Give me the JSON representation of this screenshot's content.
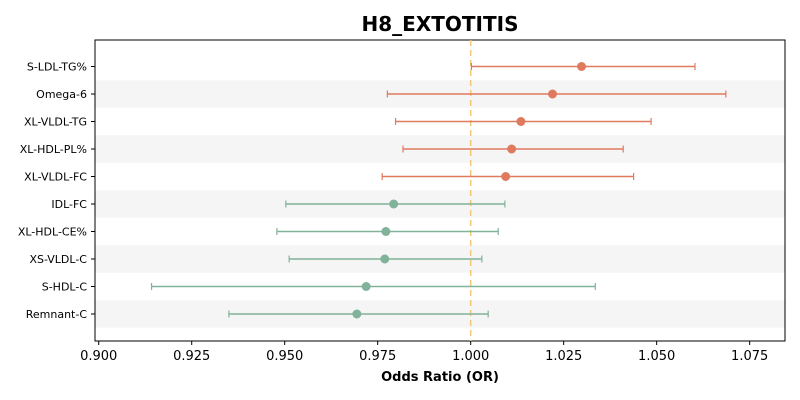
{
  "chart_data": {
    "type": "forest",
    "title": "H8_EXTOTITIS",
    "xlabel": "Odds Ratio (OR)",
    "ylabel": "",
    "xlim": [
      0.899,
      1.0845
    ],
    "xticks": [
      0.9,
      0.925,
      0.95,
      0.975,
      1.0,
      1.025,
      1.05,
      1.075
    ],
    "xtick_labels": [
      "0.900",
      "0.925",
      "0.950",
      "0.975",
      "1.000",
      "1.025",
      "1.050",
      "1.075"
    ],
    "reference_line": 1.0,
    "reference_color": "#f0c878",
    "positive_color": "#e07a5f",
    "negative_color": "#81b29a",
    "stripe_color": "#f5f5f5",
    "rows": [
      {
        "label": "S-LDL-TG%",
        "or": 1.0298,
        "lower": 1.0002,
        "upper": 1.0603
      },
      {
        "label": "Omega-6",
        "or": 1.022,
        "lower": 0.9776,
        "upper": 1.0686
      },
      {
        "label": "XL-VLDL-TG",
        "or": 1.0135,
        "lower": 0.9798,
        "upper": 1.0485
      },
      {
        "label": "XL-HDL-PL%",
        "or": 1.011,
        "lower": 0.9818,
        "upper": 1.041
      },
      {
        "label": "XL-VLDL-FC",
        "or": 1.0094,
        "lower": 0.9762,
        "upper": 1.0438
      },
      {
        "label": "IDL-FC",
        "or": 0.9793,
        "lower": 0.9503,
        "upper": 1.0092
      },
      {
        "label": "XL-HDL-CE%",
        "or": 0.9772,
        "lower": 0.9479,
        "upper": 1.0074
      },
      {
        "label": "XS-VLDL-C",
        "or": 0.9769,
        "lower": 0.9512,
        "upper": 1.003
      },
      {
        "label": "S-HDL-C",
        "or": 0.9719,
        "lower": 0.9142,
        "upper": 1.0335
      },
      {
        "label": "Remnant-C",
        "or": 0.9694,
        "lower": 0.935,
        "upper": 1.0047
      }
    ],
    "grid": false,
    "legend": "none"
  }
}
